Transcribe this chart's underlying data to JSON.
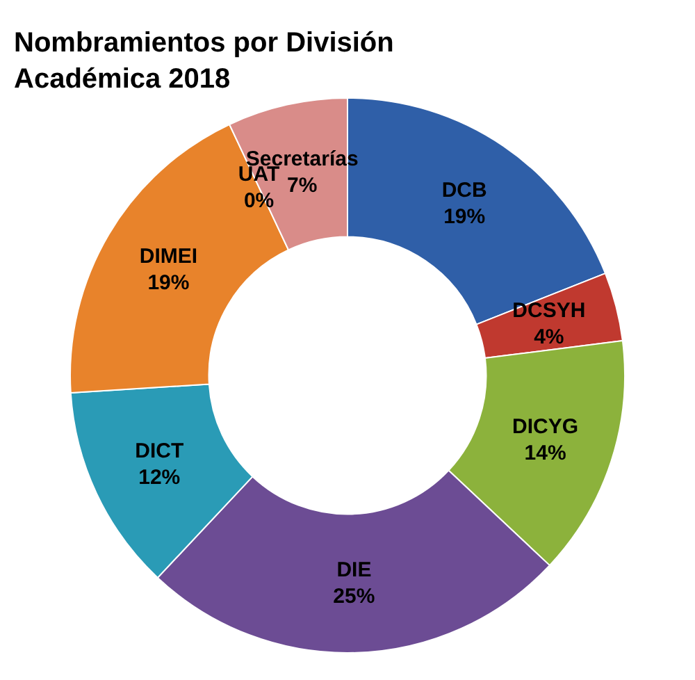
{
  "chart_data": {
    "type": "donut",
    "title": "Nombramientos por División Académica 2018",
    "categories": [
      "DCB",
      "DCSYH",
      "DICYG",
      "DIE",
      "DICT",
      "DIMEI",
      "UAT",
      "Secretarías"
    ],
    "values": [
      19,
      4,
      14,
      25,
      12,
      19,
      0,
      7
    ],
    "colors": [
      "#2f5fa8",
      "#c0392f",
      "#8cb23c",
      "#6c4c94",
      "#2a9bb6",
      "#e8832b",
      "#6f9bd1",
      "#d98c89"
    ],
    "value_labels": [
      "19%",
      "4%",
      "14%",
      "25%",
      "12%",
      "19%",
      "0%",
      "7%"
    ],
    "legend": false
  }
}
